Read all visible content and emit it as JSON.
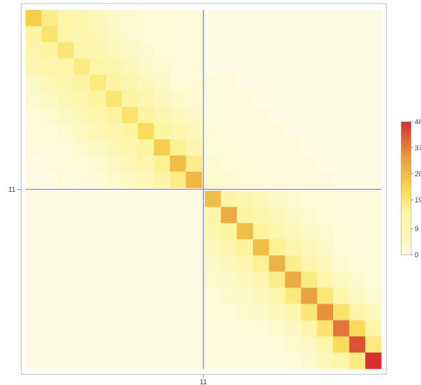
{
  "chart_data": {
    "type": "heatmap",
    "title": "",
    "xlabel": "",
    "ylabel": "",
    "x_ticks": [
      "11"
    ],
    "y_ticks": [
      "11"
    ],
    "block_size": 11,
    "grid_size": 22,
    "legend": {
      "placement": "right",
      "min": 0,
      "max": 46,
      "tick_labels": [
        "0",
        "9",
        "19",
        "28",
        "37",
        "46"
      ],
      "tick_values": [
        0,
        9,
        19,
        28,
        37,
        46
      ]
    },
    "colors": {
      "low": "#fdfbe3",
      "mid_low": "#fdf5a0",
      "mid": "#f8d94f",
      "mid_high": "#e8a13e",
      "high": "#d7302e",
      "separator": "#9a9a9a",
      "frame": "#bbbbbb"
    },
    "values": [
      [
        25,
        17,
        12,
        8,
        6,
        4,
        3,
        2,
        2,
        1,
        1,
        0,
        0,
        0,
        0,
        0,
        0,
        0,
        0,
        0,
        0,
        0
      ],
      [
        13,
        20,
        12,
        9,
        7,
        5,
        3,
        2,
        2,
        1,
        1,
        0,
        0,
        0,
        0,
        0,
        0,
        0,
        0,
        0,
        0,
        0
      ],
      [
        11,
        14,
        19,
        11,
        8,
        6,
        4,
        3,
        2,
        1,
        1,
        0,
        0,
        0,
        0,
        0,
        0,
        0,
        0,
        0,
        0,
        0
      ],
      [
        8,
        10,
        12,
        18,
        12,
        8,
        6,
        4,
        3,
        2,
        1,
        0,
        0,
        0,
        0,
        0,
        0,
        0,
        0,
        0,
        0,
        0
      ],
      [
        4,
        7,
        9,
        13,
        18,
        13,
        9,
        6,
        4,
        2,
        2,
        1,
        1,
        0,
        0,
        0,
        0,
        0,
        0,
        0,
        0,
        0
      ],
      [
        3,
        5,
        7,
        9,
        14,
        19,
        13,
        8,
        6,
        4,
        3,
        1,
        1,
        1,
        0,
        0,
        0,
        0,
        0,
        0,
        0,
        0
      ],
      [
        2,
        3,
        5,
        7,
        10,
        14,
        20,
        14,
        9,
        6,
        4,
        1,
        1,
        1,
        1,
        0,
        0,
        0,
        0,
        0,
        0,
        0
      ],
      [
        1,
        2,
        3,
        5,
        7,
        10,
        14,
        22,
        14,
        9,
        6,
        2,
        1,
        1,
        1,
        1,
        0,
        0,
        0,
        0,
        0,
        0
      ],
      [
        1,
        1,
        2,
        3,
        5,
        7,
        10,
        14,
        25,
        16,
        10,
        2,
        2,
        1,
        1,
        1,
        1,
        0,
        0,
        0,
        0,
        0
      ],
      [
        0,
        1,
        1,
        2,
        3,
        5,
        7,
        10,
        16,
        28,
        17,
        3,
        2,
        2,
        1,
        1,
        1,
        1,
        0,
        0,
        0,
        0
      ],
      [
        0,
        0,
        1,
        1,
        2,
        3,
        5,
        7,
        11,
        17,
        29,
        3,
        3,
        2,
        2,
        1,
        1,
        1,
        1,
        0,
        0,
        0
      ],
      [
        0,
        0,
        0,
        0,
        0,
        0,
        0,
        0,
        0,
        0,
        0,
        28,
        12,
        9,
        6,
        4,
        3,
        2,
        2,
        1,
        1,
        1
      ],
      [
        0,
        0,
        0,
        0,
        0,
        0,
        0,
        0,
        0,
        0,
        0,
        12,
        31,
        14,
        9,
        6,
        4,
        3,
        2,
        1,
        1,
        1
      ],
      [
        0,
        0,
        0,
        0,
        0,
        0,
        0,
        0,
        0,
        0,
        0,
        9,
        14,
        28,
        15,
        9,
        6,
        4,
        3,
        2,
        1,
        1
      ],
      [
        0,
        0,
        0,
        0,
        0,
        0,
        0,
        0,
        0,
        0,
        0,
        6,
        9,
        15,
        28,
        16,
        9,
        6,
        4,
        2,
        1,
        1
      ],
      [
        0,
        0,
        0,
        0,
        0,
        0,
        0,
        0,
        0,
        0,
        0,
        4,
        6,
        9,
        16,
        30,
        17,
        10,
        6,
        3,
        2,
        1
      ],
      [
        0,
        0,
        0,
        0,
        0,
        0,
        0,
        0,
        0,
        0,
        0,
        3,
        4,
        6,
        9,
        17,
        31,
        18,
        10,
        5,
        3,
        2
      ],
      [
        0,
        0,
        0,
        0,
        0,
        0,
        0,
        0,
        0,
        0,
        0,
        2,
        3,
        4,
        6,
        10,
        18,
        33,
        19,
        10,
        5,
        3
      ],
      [
        0,
        0,
        0,
        0,
        0,
        0,
        0,
        0,
        0,
        0,
        0,
        2,
        2,
        3,
        4,
        6,
        10,
        19,
        35,
        20,
        11,
        6
      ],
      [
        0,
        0,
        0,
        0,
        0,
        0,
        0,
        0,
        0,
        0,
        0,
        1,
        1,
        2,
        2,
        3,
        5,
        10,
        20,
        38,
        22,
        12
      ],
      [
        0,
        0,
        0,
        0,
        0,
        0,
        0,
        0,
        0,
        0,
        0,
        1,
        1,
        1,
        1,
        2,
        3,
        5,
        11,
        22,
        42,
        18
      ],
      [
        0,
        0,
        0,
        0,
        0,
        0,
        0,
        0,
        0,
        0,
        0,
        1,
        1,
        1,
        1,
        1,
        2,
        3,
        6,
        12,
        18,
        46
      ]
    ]
  }
}
